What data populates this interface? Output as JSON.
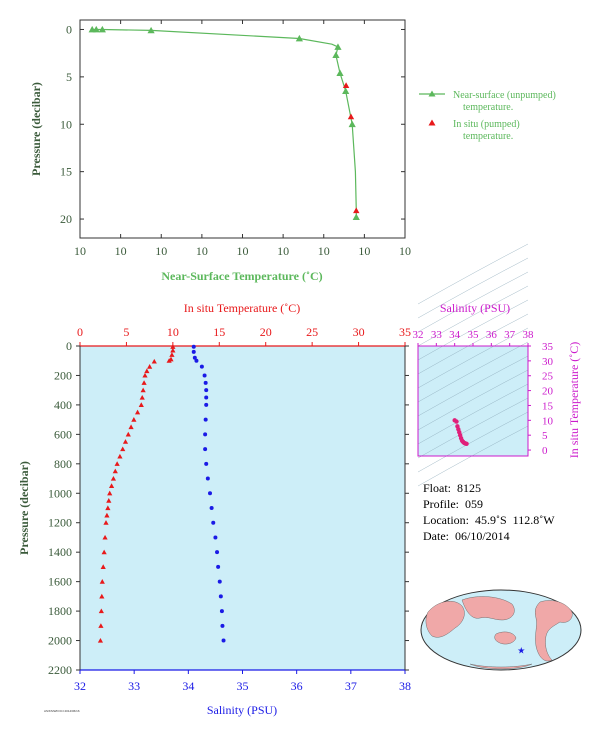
{
  "colors": {
    "near_surface": "#5cb85c",
    "in_situ_temp": "#e8191b",
    "salinity": "#1a1ae6",
    "ts_magenta": "#cc1bcc",
    "axis_green": "#3a5a3a",
    "panel_bg": "#cdeef8",
    "land": "#f0a8a8",
    "ocean": "#cdeef8"
  },
  "chart_data": [
    {
      "id": "near_surface",
      "type": "line",
      "xlabel": "Near-Surface Temperature (˚C)",
      "ylabel": "Pressure (decibar)",
      "xlim": [
        10.95,
        10.15
      ],
      "ylim": [
        22,
        -1
      ],
      "xticks": [
        10.95,
        10.85,
        10.75,
        10.65,
        10.55,
        10.45,
        10.35,
        10.25,
        10.15
      ],
      "xtick_labels": [
        "10",
        "10",
        "10",
        "10",
        "10",
        "10",
        "10",
        "10",
        "10"
      ],
      "yticks": [
        0,
        5,
        10,
        15,
        20
      ],
      "series": [
        {
          "name": "Near-surface (unpumped) temperature.",
          "points": [
            [
              10.92,
              0.0
            ],
            [
              10.91,
              0.0
            ],
            [
              10.905,
              0.0
            ],
            [
              10.895,
              0.0
            ],
            [
              10.775,
              0.1
            ],
            [
              10.41,
              0.95
            ],
            [
              10.33,
              1.55
            ],
            [
              10.315,
              1.85
            ],
            [
              10.32,
              2.7
            ],
            [
              10.31,
              4.6
            ],
            [
              10.296,
              6.5
            ],
            [
              10.28,
              10.0
            ],
            [
              10.272,
              15.0
            ],
            [
              10.27,
              19.2
            ],
            [
              10.27,
              19.8
            ]
          ],
          "markers": [
            [
              10.92,
              0.0
            ],
            [
              10.91,
              0.0
            ],
            [
              10.895,
              0.0
            ],
            [
              10.775,
              0.1
            ],
            [
              10.41,
              0.95
            ],
            [
              10.315,
              1.85
            ],
            [
              10.32,
              2.7
            ],
            [
              10.31,
              4.6
            ],
            [
              10.296,
              6.5
            ],
            [
              10.28,
              10.0
            ],
            [
              10.27,
              19.8
            ]
          ]
        },
        {
          "name": "In situ (pumped) temperature.",
          "points": [
            [
              10.295,
              5.9
            ],
            [
              10.283,
              9.2
            ],
            [
              10.27,
              19.1
            ]
          ]
        }
      ]
    },
    {
      "id": "profile",
      "type": "scatter",
      "title": "In situ Temperature (˚C)",
      "xlabel": "Salinity (PSU)",
      "ylabel": "Pressure (decibar)",
      "temp_lim": [
        0,
        35
      ],
      "temp_ticks": [
        0,
        5,
        10,
        15,
        20,
        25,
        30,
        35
      ],
      "sal_lim": [
        32,
        38
      ],
      "sal_ticks": [
        32,
        33,
        34,
        35,
        36,
        37,
        38
      ],
      "ylim": [
        0,
        2200
      ],
      "yticks": [
        0,
        200,
        400,
        600,
        800,
        1000,
        1200,
        1400,
        1600,
        1800,
        2000,
        2200
      ],
      "temperature": {
        "points": [
          [
            10.0,
            5
          ],
          [
            10.0,
            30
          ],
          [
            9.9,
            60
          ],
          [
            9.8,
            90
          ],
          [
            9.6,
            100
          ],
          [
            8.0,
            105
          ],
          [
            7.5,
            140
          ],
          [
            7.2,
            170
          ],
          [
            7.0,
            200
          ],
          [
            6.9,
            250
          ],
          [
            6.8,
            300
          ],
          [
            6.7,
            350
          ],
          [
            6.6,
            400
          ],
          [
            6.2,
            450
          ],
          [
            5.8,
            500
          ],
          [
            5.5,
            550
          ],
          [
            5.2,
            600
          ],
          [
            4.9,
            650
          ],
          [
            4.6,
            700
          ],
          [
            4.3,
            750
          ],
          [
            4.0,
            800
          ],
          [
            3.8,
            850
          ],
          [
            3.6,
            900
          ],
          [
            3.4,
            950
          ],
          [
            3.2,
            1000
          ],
          [
            3.1,
            1050
          ],
          [
            3.0,
            1100
          ],
          [
            2.9,
            1150
          ],
          [
            2.8,
            1200
          ],
          [
            2.7,
            1300
          ],
          [
            2.6,
            1400
          ],
          [
            2.5,
            1500
          ],
          [
            2.4,
            1600
          ],
          [
            2.35,
            1700
          ],
          [
            2.3,
            1800
          ],
          [
            2.25,
            1900
          ],
          [
            2.2,
            2000
          ]
        ]
      },
      "salinity": {
        "points": [
          [
            34.1,
            5
          ],
          [
            34.1,
            40
          ],
          [
            34.12,
            80
          ],
          [
            34.15,
            100
          ],
          [
            34.25,
            140
          ],
          [
            34.3,
            200
          ],
          [
            34.32,
            250
          ],
          [
            34.33,
            300
          ],
          [
            34.33,
            350
          ],
          [
            34.33,
            400
          ],
          [
            34.32,
            500
          ],
          [
            34.31,
            600
          ],
          [
            34.31,
            700
          ],
          [
            34.33,
            800
          ],
          [
            34.36,
            900
          ],
          [
            34.4,
            1000
          ],
          [
            34.43,
            1100
          ],
          [
            34.46,
            1200
          ],
          [
            34.5,
            1300
          ],
          [
            34.53,
            1400
          ],
          [
            34.55,
            1500
          ],
          [
            34.58,
            1600
          ],
          [
            34.6,
            1700
          ],
          [
            34.62,
            1800
          ],
          [
            34.63,
            1900
          ],
          [
            34.65,
            2000
          ]
        ]
      }
    },
    {
      "id": "ts_diagram",
      "type": "scatter",
      "title": "Salinity (PSU)",
      "ylabel": "In situ Temperature (˚C)",
      "xlim": [
        32,
        38
      ],
      "xticks": [
        32,
        33,
        34,
        35,
        36,
        37,
        38
      ],
      "ylim": [
        -2,
        35
      ],
      "yticks": [
        0,
        5,
        10,
        15,
        20,
        25,
        30,
        35
      ],
      "points": [
        [
          34.0,
          10.0
        ],
        [
          34.1,
          9.6
        ],
        [
          34.15,
          8.0
        ],
        [
          34.2,
          7.0
        ],
        [
          34.25,
          6.0
        ],
        [
          34.3,
          5.0
        ],
        [
          34.35,
          4.0
        ],
        [
          34.4,
          3.2
        ],
        [
          34.45,
          2.8
        ],
        [
          34.5,
          2.5
        ],
        [
          34.55,
          2.3
        ],
        [
          34.6,
          2.2
        ],
        [
          34.65,
          2.1
        ]
      ]
    }
  ],
  "legend": {
    "near_surface_label_1": "Near-surface (unpumped)",
    "near_surface_label_2": "temperature.",
    "in_situ_label_1": "In situ (pumped)",
    "in_situ_label_2": "temperature."
  },
  "info": {
    "float": "Float:  8125",
    "profile": "Profile:  059",
    "location": "Location:  45.9˚S  112.8˚W",
    "date": "Date:  06/10/2014"
  },
  "map": {
    "marker_lon": -112.8,
    "marker_lat": -45.9
  },
  "footer": "AS/KS/WFOCI  2014/06/16"
}
